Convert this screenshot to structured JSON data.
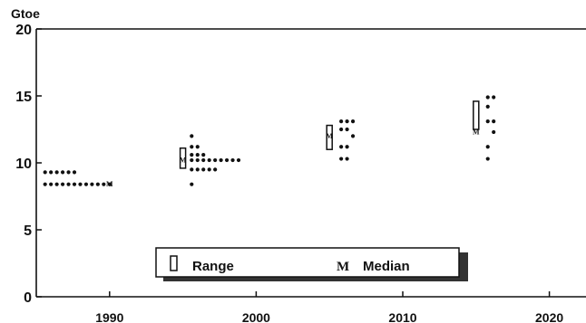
{
  "chart_data": {
    "type": "scatter",
    "ylabel": "Gtoe",
    "ylim": [
      0,
      20
    ],
    "xlim": [
      1985,
      2022.5
    ],
    "yticks": [
      0,
      5,
      10,
      15,
      20
    ],
    "xticks": [
      1990,
      2000,
      2010,
      2020
    ],
    "grid": false,
    "legend_position": "bottom-center",
    "series": [
      {
        "name": "Range",
        "marker": "open-rectangle",
        "ranges": [
          {
            "x": 1995,
            "low": 9.6,
            "high": 11.1
          },
          {
            "x": 2005,
            "low": 11.0,
            "high": 12.8
          },
          {
            "x": 2015,
            "low": 12.5,
            "high": 14.6
          }
        ]
      },
      {
        "name": "Median",
        "marker": "M",
        "points": [
          {
            "x": 1990,
            "y": 8.4
          },
          {
            "x": 1995,
            "y": 10.2
          },
          {
            "x": 2005,
            "y": 12.0
          },
          {
            "x": 2015,
            "y": 12.3
          }
        ]
      },
      {
        "name": "",
        "marker": "dot",
        "points": [
          {
            "x": 1985.6,
            "y": 9.3
          },
          {
            "x": 1986.0,
            "y": 9.3
          },
          {
            "x": 1986.4,
            "y": 9.3
          },
          {
            "x": 1986.8,
            "y": 9.3
          },
          {
            "x": 1987.2,
            "y": 9.3
          },
          {
            "x": 1987.6,
            "y": 9.3
          },
          {
            "x": 1985.6,
            "y": 8.4
          },
          {
            "x": 1986.0,
            "y": 8.4
          },
          {
            "x": 1986.4,
            "y": 8.4
          },
          {
            "x": 1986.8,
            "y": 8.4
          },
          {
            "x": 1987.2,
            "y": 8.4
          },
          {
            "x": 1987.6,
            "y": 8.4
          },
          {
            "x": 1988.0,
            "y": 8.4
          },
          {
            "x": 1988.4,
            "y": 8.4
          },
          {
            "x": 1988.8,
            "y": 8.4
          },
          {
            "x": 1989.2,
            "y": 8.4
          },
          {
            "x": 1989.6,
            "y": 8.4
          },
          {
            "x": 1990.0,
            "y": 8.4
          },
          {
            "x": 1995.6,
            "y": 12.0
          },
          {
            "x": 1995.6,
            "y": 11.2
          },
          {
            "x": 1996.0,
            "y": 11.2
          },
          {
            "x": 1995.6,
            "y": 10.6
          },
          {
            "x": 1996.0,
            "y": 10.6
          },
          {
            "x": 1996.4,
            "y": 10.6
          },
          {
            "x": 1995.6,
            "y": 10.2
          },
          {
            "x": 1996.0,
            "y": 10.2
          },
          {
            "x": 1996.4,
            "y": 10.2
          },
          {
            "x": 1996.8,
            "y": 10.2
          },
          {
            "x": 1997.2,
            "y": 10.2
          },
          {
            "x": 1997.6,
            "y": 10.2
          },
          {
            "x": 1998.0,
            "y": 10.2
          },
          {
            "x": 1998.4,
            "y": 10.2
          },
          {
            "x": 1998.8,
            "y": 10.2
          },
          {
            "x": 1995.6,
            "y": 9.5
          },
          {
            "x": 1996.0,
            "y": 9.5
          },
          {
            "x": 1996.4,
            "y": 9.5
          },
          {
            "x": 1996.8,
            "y": 9.5
          },
          {
            "x": 1997.2,
            "y": 9.5
          },
          {
            "x": 1995.6,
            "y": 8.4
          },
          {
            "x": 2005.8,
            "y": 13.1
          },
          {
            "x": 2006.2,
            "y": 13.1
          },
          {
            "x": 2006.6,
            "y": 13.1
          },
          {
            "x": 2005.8,
            "y": 12.5
          },
          {
            "x": 2006.2,
            "y": 12.5
          },
          {
            "x": 2006.6,
            "y": 12.0
          },
          {
            "x": 2005.8,
            "y": 11.2
          },
          {
            "x": 2006.2,
            "y": 11.2
          },
          {
            "x": 2005.8,
            "y": 10.3
          },
          {
            "x": 2006.2,
            "y": 10.3
          },
          {
            "x": 2015.8,
            "y": 14.9
          },
          {
            "x": 2016.2,
            "y": 14.9
          },
          {
            "x": 2015.8,
            "y": 14.2
          },
          {
            "x": 2015.8,
            "y": 13.1
          },
          {
            "x": 2016.2,
            "y": 13.1
          },
          {
            "x": 2016.2,
            "y": 12.3
          },
          {
            "x": 2015.8,
            "y": 11.2
          },
          {
            "x": 2015.8,
            "y": 10.3
          }
        ]
      }
    ]
  },
  "legend": {
    "range_label": "Range",
    "median_symbol": "M",
    "median_label": "Median"
  }
}
